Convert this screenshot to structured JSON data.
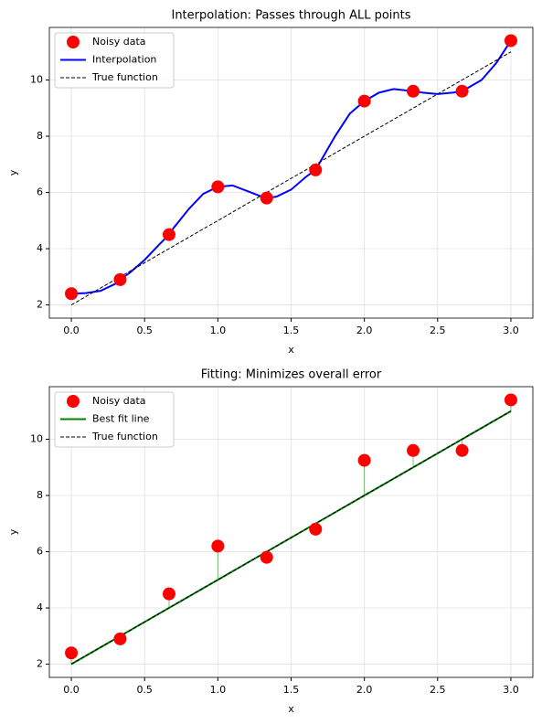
{
  "chart_data": [
    {
      "type": "line",
      "title": "Interpolation: Passes through ALL points",
      "xlabel": "x",
      "ylabel": "y",
      "xlim": [
        -0.15,
        3.15
      ],
      "ylim": [
        1.53,
        11.87
      ],
      "xticks": [
        {
          "value": 0,
          "label": "0.0"
        },
        0.5,
        {
          "value": 1,
          "label": "1.0"
        },
        1.5,
        {
          "value": 2,
          "label": "2.0"
        },
        2.5,
        {
          "value": 3,
          "label": "3.0"
        }
      ],
      "yticks": [
        2,
        4,
        6,
        8,
        10
      ],
      "grid": true,
      "legend": "upper left",
      "series": [
        {
          "name": "Noisy data",
          "type": "scatter",
          "color": "#ff0000",
          "x": [
            0,
            0.333,
            0.667,
            1.0,
            1.333,
            1.667,
            2.0,
            2.333,
            2.667,
            3.0
          ],
          "values": [
            2.4,
            2.9,
            4.5,
            6.2,
            5.8,
            6.8,
            9.25,
            9.6,
            9.6,
            11.4
          ]
        },
        {
          "name": "Interpolation",
          "type": "line",
          "color": "#0000ff",
          "x": [
            0,
            0.1,
            0.2,
            0.3,
            0.333,
            0.4,
            0.5,
            0.6,
            0.667,
            0.7,
            0.8,
            0.9,
            1.0,
            1.1,
            1.2,
            1.3,
            1.333,
            1.4,
            1.5,
            1.6,
            1.667,
            1.8,
            1.9,
            2.0,
            2.1,
            2.2,
            2.333,
            2.4,
            2.5,
            2.6,
            2.667,
            2.8,
            2.9,
            3.0
          ],
          "values": [
            2.4,
            2.42,
            2.5,
            2.75,
            2.9,
            3.15,
            3.6,
            4.15,
            4.5,
            4.75,
            5.4,
            5.95,
            6.2,
            6.25,
            6.05,
            5.85,
            5.8,
            5.85,
            6.1,
            6.55,
            6.8,
            8.0,
            8.8,
            9.25,
            9.55,
            9.68,
            9.6,
            9.55,
            9.5,
            9.55,
            9.6,
            10.0,
            10.6,
            11.4
          ]
        },
        {
          "name": "True function",
          "type": "line",
          "color": "#000000",
          "linestyle": "dashed",
          "x": [
            0,
            3
          ],
          "values": [
            2,
            11
          ]
        }
      ]
    },
    {
      "type": "line",
      "title": "Fitting: Minimizes overall error",
      "xlabel": "x",
      "ylabel": "y",
      "xlim": [
        -0.15,
        3.15
      ],
      "ylim": [
        1.53,
        11.87
      ],
      "xticks": [
        {
          "value": 0,
          "label": "0.0"
        },
        0.5,
        {
          "value": 1,
          "label": "1.0"
        },
        1.5,
        {
          "value": 2,
          "label": "2.0"
        },
        2.5,
        {
          "value": 3,
          "label": "3.0"
        }
      ],
      "yticks": [
        2,
        4,
        6,
        8,
        10
      ],
      "grid": true,
      "legend": "upper left",
      "residuals": true,
      "series": [
        {
          "name": "Noisy data",
          "type": "scatter",
          "color": "#ff0000",
          "x": [
            0,
            0.333,
            0.667,
            1.0,
            1.333,
            1.667,
            2.0,
            2.333,
            2.667,
            3.0
          ],
          "values": [
            2.4,
            2.9,
            4.5,
            6.2,
            5.8,
            6.8,
            9.25,
            9.6,
            9.6,
            11.4
          ]
        },
        {
          "name": "Best fit line",
          "type": "line",
          "color": "#008000",
          "x": [
            0,
            3
          ],
          "values": [
            2,
            11
          ]
        },
        {
          "name": "True function",
          "type": "line",
          "color": "#000000",
          "linestyle": "dashed",
          "x": [
            0,
            3
          ],
          "values": [
            2,
            11
          ]
        }
      ]
    }
  ]
}
